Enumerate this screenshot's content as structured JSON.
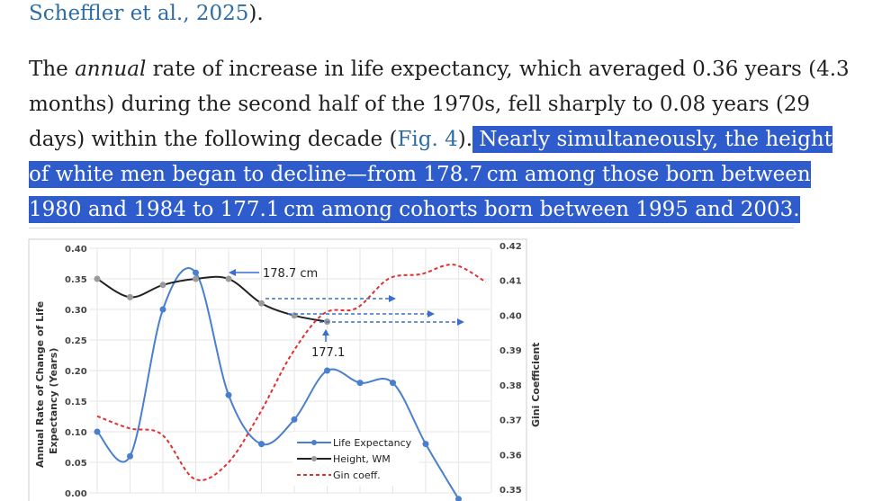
{
  "text": {
    "top_citation": "Scheffler et al., 2025",
    "top_close": ").",
    "p1_a": "The ",
    "p1_em": "annual",
    "p1_b": " rate of increase in life expectancy, which averaged 0.36 years (4.3",
    "p2": "months) during the second half of the 1970s, fell sharply to 0.08 years (29",
    "p3_a": "days) within the following decade (",
    "p3_link": "Fig. 4",
    "p3_b": ").",
    "hl1": " Nearly simultaneously, the height",
    "hl2": "of white men began to decline—from 178.7 cm among those born between",
    "hl3": "1980 and 1984 to 177.1 cm among cohorts born between 1995 and 2003."
  },
  "chart_data": {
    "type": "line",
    "ylabel_left_1": "Annual Rate of Change of Life",
    "ylabel_left_2": "Expectancy (Years)",
    "ylabel_right": "Gini Coefficient",
    "ylim_left": [
      0,
      0.4
    ],
    "ylim_right": [
      0.35,
      0.42
    ],
    "yticks_left": [
      "0.40",
      "0.35",
      "0.30",
      "0.25",
      "0.20",
      "0.15",
      "0.10",
      "0.05",
      "0.00"
    ],
    "yticks_right": [
      "0.42",
      "0.41",
      "0.40",
      "0.39",
      "0.38",
      "0.37",
      "0.36",
      "0.35"
    ],
    "grid": true,
    "legend_position": "bottom-center",
    "series": [
      {
        "name": "Life Expectancy",
        "axis": "left",
        "color": "#4a7fcf",
        "style": "solid",
        "x": [
          0,
          1,
          2,
          3,
          4,
          5,
          6,
          7,
          8,
          9,
          10,
          11
        ],
        "y": [
          0.1,
          0.06,
          0.3,
          0.36,
          0.16,
          0.08,
          0.12,
          0.2,
          0.18,
          0.18,
          0.08,
          -0.01
        ]
      },
      {
        "name": "Height, WM",
        "axis": "left",
        "color": "#222222",
        "style": "solid",
        "x": [
          0,
          1,
          2,
          3,
          4,
          5,
          6,
          7
        ],
        "y": [
          0.35,
          0.32,
          0.34,
          0.35,
          0.35,
          0.31,
          0.29,
          0.28
        ]
      },
      {
        "name": "Gin coeff.",
        "axis": "right",
        "color": "#e03030",
        "style": "dashed",
        "x": [
          0,
          1,
          2,
          3,
          4,
          5,
          6,
          7,
          8,
          9,
          10,
          11,
          12
        ],
        "y": [
          0.371,
          0.3675,
          0.3657,
          0.353,
          0.3572,
          0.3715,
          0.3888,
          0.4005,
          0.402,
          0.4105,
          0.4118,
          0.4145,
          0.4095
        ]
      }
    ],
    "annotations": [
      {
        "text": "178.7 cm",
        "x": 4,
        "y": 0.35,
        "axis": "left"
      },
      {
        "text": "177.1",
        "x": 7,
        "y": 0.28,
        "axis": "left"
      }
    ]
  }
}
